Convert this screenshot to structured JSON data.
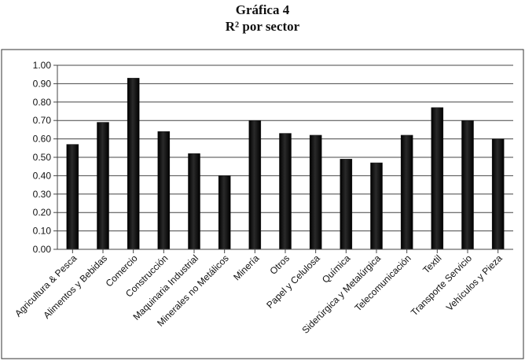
{
  "chart_data": {
    "type": "bar",
    "title": "Gráfica 4",
    "subtitle": "R² por sector",
    "xlabel": "",
    "ylabel": "",
    "ylim": [
      0,
      1.0
    ],
    "yticks": [
      "0.00",
      "0.10",
      "0.20",
      "0.30",
      "0.40",
      "0.50",
      "0.60",
      "0.70",
      "0.80",
      "0.90",
      "1.00"
    ],
    "grid": true,
    "legend": "none",
    "bar_color": "#111111",
    "categories": [
      "Agricultura & Pesca",
      "Alimentos y Bebidas",
      "Comercio",
      "Construcción",
      "Maquinaria Industrial",
      "Minerales no Metálicos",
      "Minería",
      "Otros",
      "Papel y Celulosa",
      "Química",
      "Siderúrgica y Metalúrgica",
      "Telecomunicación",
      "Textil",
      "Transporte Servicio",
      "Vehículos y Pieza"
    ],
    "values": [
      0.57,
      0.69,
      0.93,
      0.64,
      0.52,
      0.4,
      0.7,
      0.63,
      0.62,
      0.49,
      0.47,
      0.62,
      0.77,
      0.7,
      0.6
    ]
  }
}
